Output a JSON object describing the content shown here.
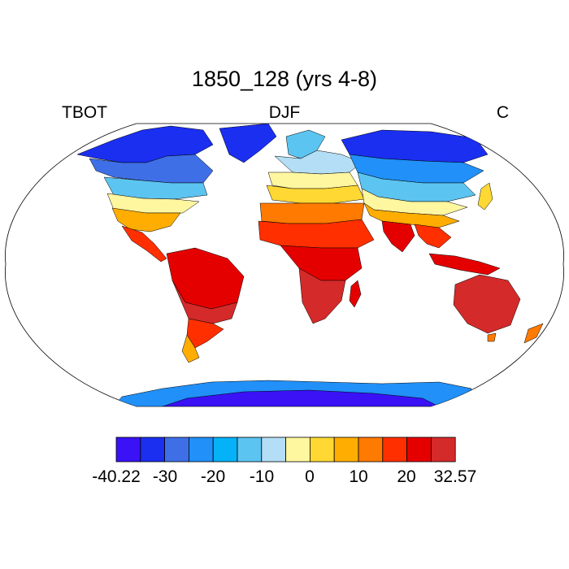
{
  "header": {
    "title": "1850_128 (yrs 4-8)",
    "variable": "TBOT",
    "season": "DJF",
    "units": "C"
  },
  "map": {
    "projection": "robinson",
    "field": "surface air temperature over land",
    "ocean_color": "#ffffff",
    "coastline_color": "#000000"
  },
  "colorbar": {
    "colors": [
      "#3a12f5",
      "#1a2ff0",
      "#3e6fe6",
      "#2190f8",
      "#05b2f7",
      "#5cc4f0",
      "#b3def5",
      "#fff6a0",
      "#ffd833",
      "#ffad00",
      "#ff7a00",
      "#ff2f00",
      "#e50000",
      "#d42a2a"
    ],
    "tick_labels": [
      "-40.22",
      "-30",
      "-20",
      "-10",
      "0",
      "10",
      "20",
      "32.57"
    ]
  }
}
